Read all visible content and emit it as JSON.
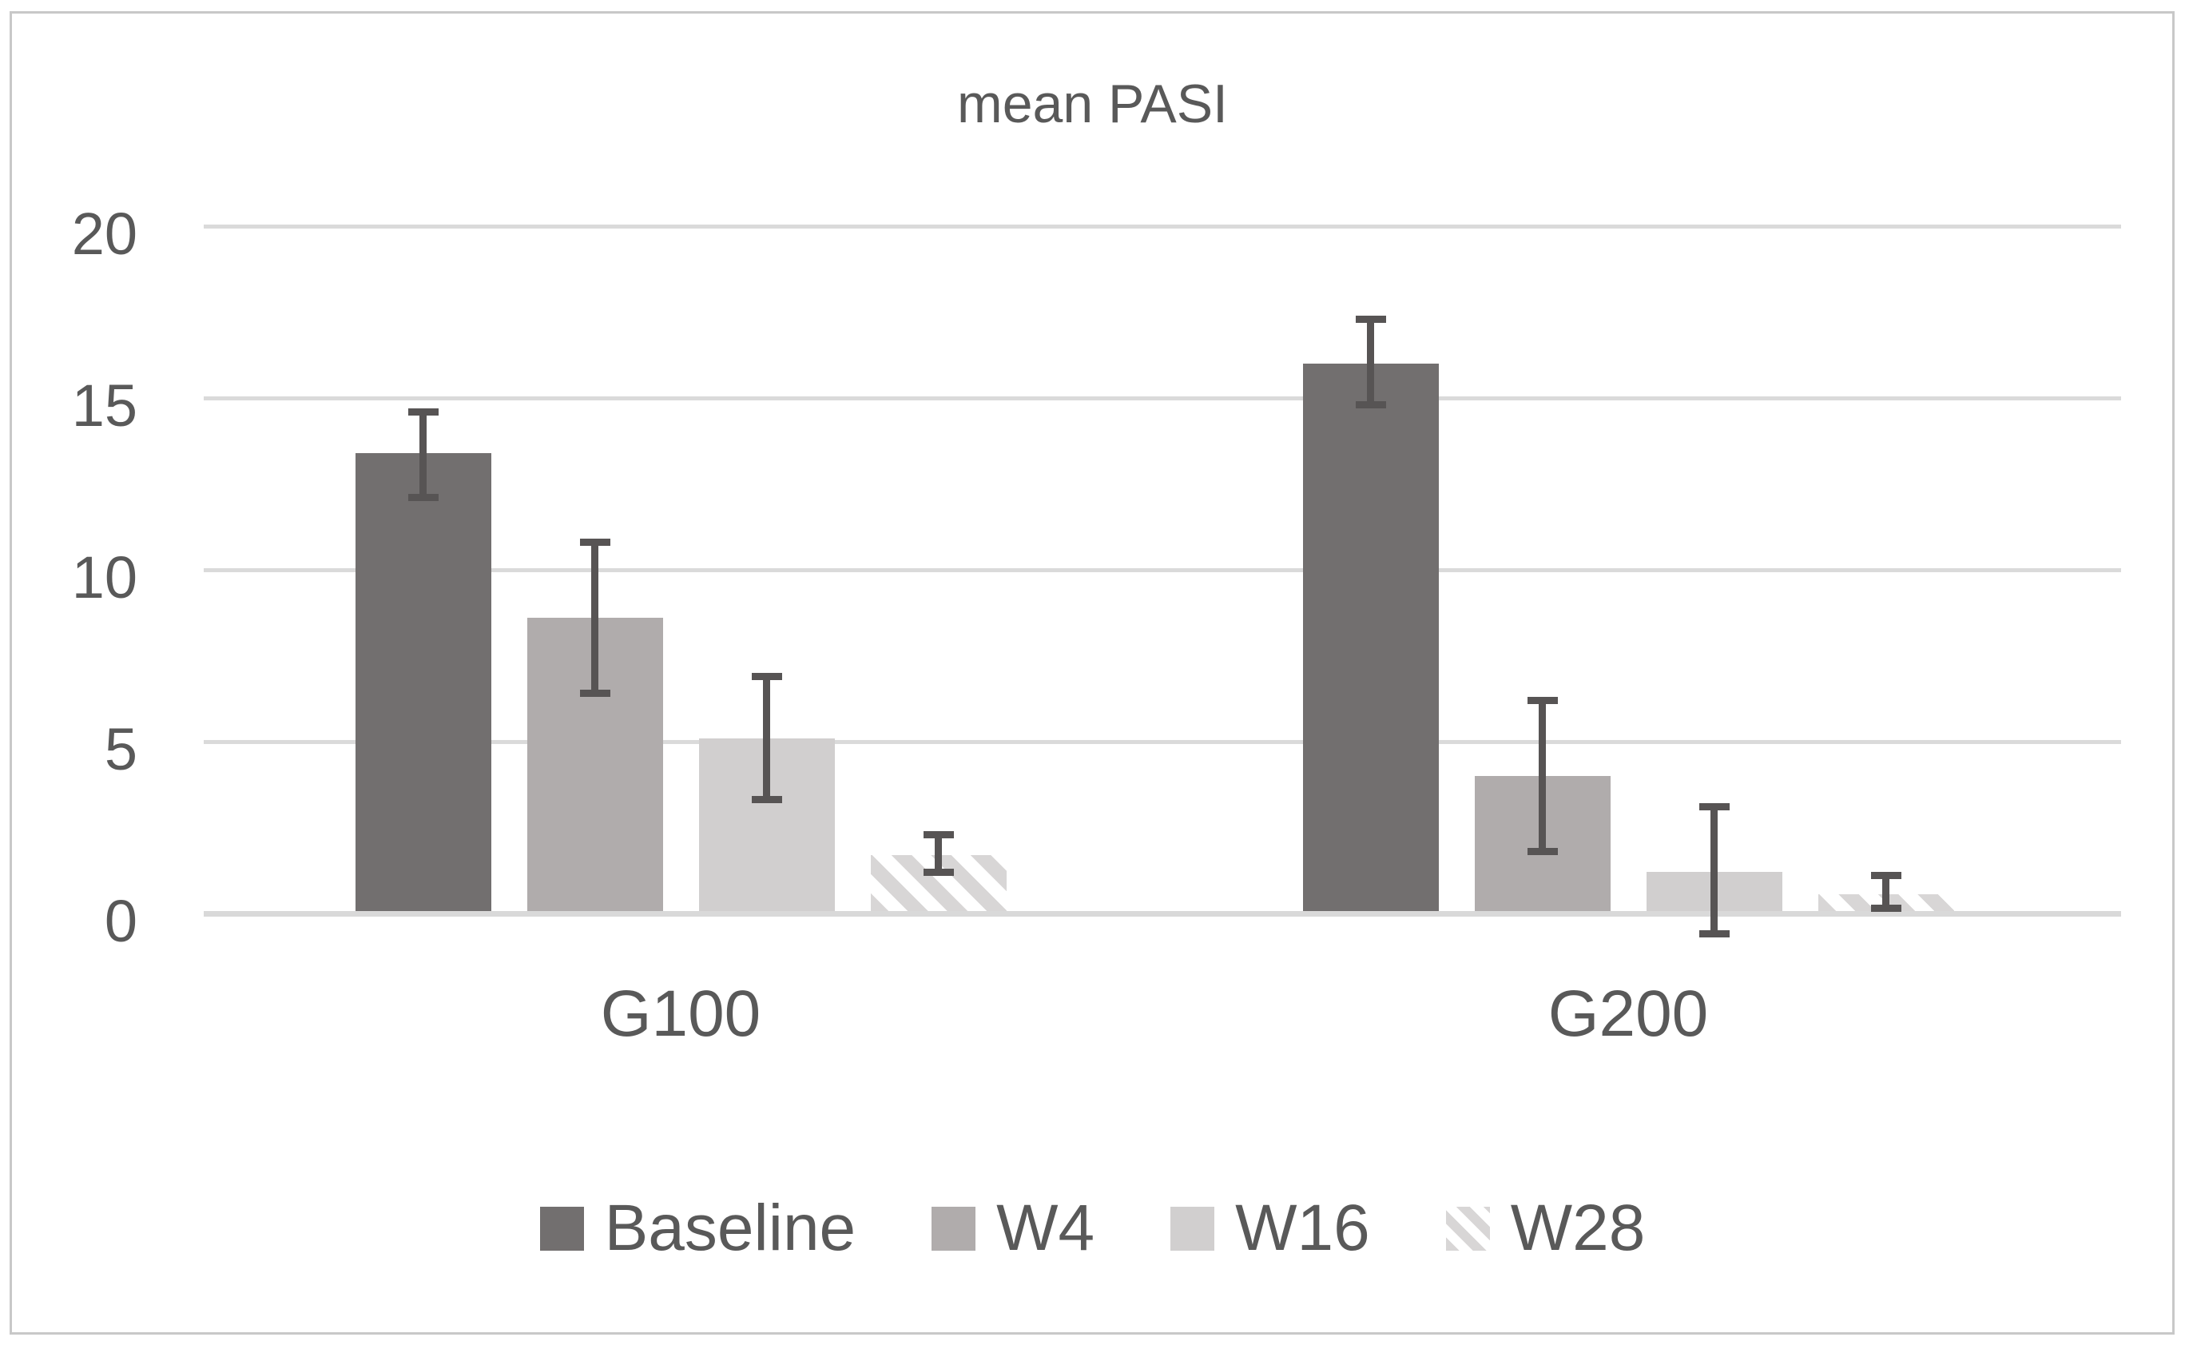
{
  "chart_data": {
    "type": "bar",
    "title": "mean PASI",
    "categories": [
      "G100",
      "G200"
    ],
    "series": [
      {
        "name": "Baseline",
        "color": "#726f6f",
        "hatch": false,
        "values": [
          13.4,
          16.0
        ],
        "err_low": [
          12.0,
          14.7
        ],
        "err_high": [
          14.7,
          17.4
        ]
      },
      {
        "name": "W4",
        "color": "#b0acac",
        "hatch": false,
        "values": [
          8.6,
          4.0
        ],
        "err_low": [
          6.3,
          1.7
        ],
        "err_high": [
          10.9,
          6.3
        ]
      },
      {
        "name": "W16",
        "color": "#d1cfcf",
        "hatch": false,
        "values": [
          5.1,
          1.2
        ],
        "err_low": [
          3.2,
          -0.7
        ],
        "err_high": [
          7.0,
          3.2
        ]
      },
      {
        "name": "W28",
        "color": "#d8d6d6",
        "hatch": true,
        "values": [
          1.7,
          0.55
        ],
        "err_low": [
          1.1,
          0.05
        ],
        "err_high": [
          2.4,
          1.2
        ]
      }
    ],
    "xlabel": "",
    "ylabel": "",
    "ylim": [
      0,
      20
    ],
    "yticks": [
      0,
      5,
      10,
      15,
      20
    ],
    "grid": "horizontal",
    "legend_position": "bottom",
    "colors": {
      "gridline": "#dadada",
      "axis_line": "#d9d9d9",
      "error_bar": "#575454",
      "text": "#595959",
      "frame_border": "#c8c8c8",
      "background": "#ffffff"
    }
  }
}
